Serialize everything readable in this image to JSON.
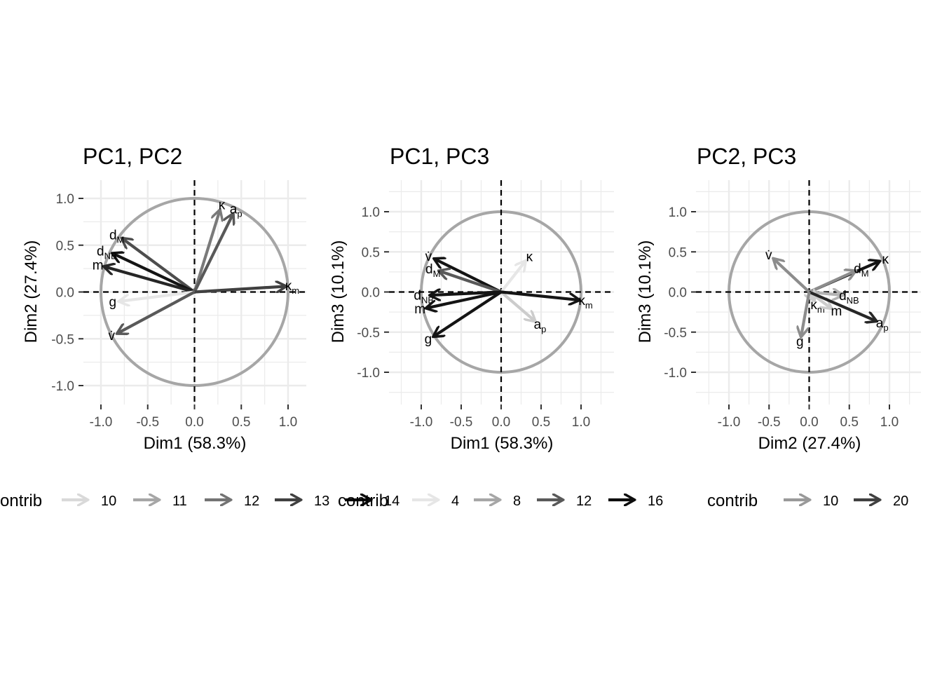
{
  "chart_data": [
    {
      "type": "scatter",
      "subtype": "pca-variable-correlation-circle",
      "title": "PC1, PC2",
      "xlabel": "Dim1 (58.3%)",
      "ylabel": "Dim2 (27.4%)",
      "xlim": [
        -1.2,
        1.2
      ],
      "ylim": [
        -1.2,
        1.2
      ],
      "xticks": [
        "-1.0",
        "-0.5",
        "0.0",
        "0.5",
        "1.0"
      ],
      "yticks": [
        "-1.0",
        "-0.5",
        "0.0",
        "0.5",
        "1.0"
      ],
      "grid": true,
      "legend_position": "bottom",
      "legend": {
        "title": "contrib",
        "entries": [
          {
            "label": "10",
            "color": "#d9d9d9"
          },
          {
            "label": "11",
            "color": "#a6a6a6"
          },
          {
            "label": "12",
            "color": "#737373"
          },
          {
            "label": "13",
            "color": "#404040"
          },
          {
            "label": "14",
            "color": "#0d0d0d"
          }
        ]
      },
      "vectors": [
        {
          "label": "κ",
          "x": 0.27,
          "y": 0.87,
          "color": "#7a7a7a"
        },
        {
          "label": "a",
          "sub": "p",
          "x": 0.41,
          "y": 0.83,
          "color": "#595959"
        },
        {
          "label": "d",
          "sub": "M",
          "x": -0.77,
          "y": 0.57,
          "color": "#4d4d4d"
        },
        {
          "label": "d",
          "sub": "NB",
          "x": -0.87,
          "y": 0.41,
          "color": "#141414"
        },
        {
          "label": "m",
          "x": -0.96,
          "y": 0.27,
          "color": "#262626"
        },
        {
          "label": "g",
          "x": -0.8,
          "y": -0.1,
          "color": "#e6e6e6"
        },
        {
          "label": "v̇",
          "x": -0.82,
          "y": -0.44,
          "color": "#595959"
        },
        {
          "label": "κ",
          "sub": "m",
          "x": 0.97,
          "y": 0.06,
          "color": "#404040"
        }
      ]
    },
    {
      "type": "scatter",
      "subtype": "pca-variable-correlation-circle",
      "title": "PC1, PC3",
      "xlabel": "Dim1 (58.3%)",
      "ylabel": "Dim3 (10.1%)",
      "xlim": [
        -1.4,
        1.4
      ],
      "ylim": [
        -1.4,
        1.4
      ],
      "xticks": [
        "-1.0",
        "-0.5",
        "0.0",
        "0.5",
        "1.0"
      ],
      "yticks": [
        "-1.0",
        "-0.5",
        "0.0",
        "0.5",
        "1.0"
      ],
      "grid": true,
      "legend_position": "bottom",
      "legend": {
        "title": "contrib",
        "entries": [
          {
            "label": "4",
            "color": "#e6e6e6"
          },
          {
            "label": "8",
            "color": "#a6a6a6"
          },
          {
            "label": "12",
            "color": "#595959"
          },
          {
            "label": "16",
            "color": "#0d0d0d"
          }
        ]
      },
      "vectors": [
        {
          "label": "κ",
          "x": 0.3,
          "y": 0.38,
          "color": "#e6e6e6"
        },
        {
          "label": "a",
          "sub": "p",
          "x": 0.42,
          "y": -0.36,
          "color": "#cccccc"
        },
        {
          "label": "v̇",
          "x": -0.83,
          "y": 0.41,
          "color": "#141414"
        },
        {
          "label": "d",
          "sub": "M",
          "x": -0.77,
          "y": 0.26,
          "color": "#595959"
        },
        {
          "label": "d",
          "sub": "NB",
          "x": -0.88,
          "y": -0.04,
          "color": "#141414"
        },
        {
          "label": "m",
          "x": -0.93,
          "y": -0.2,
          "color": "#141414"
        },
        {
          "label": "g",
          "x": -0.84,
          "y": -0.55,
          "color": "#141414"
        },
        {
          "label": "κ",
          "sub": "m",
          "x": 0.97,
          "y": -0.1,
          "color": "#141414"
        }
      ]
    },
    {
      "type": "scatter",
      "subtype": "pca-variable-correlation-circle",
      "title": "PC2, PC3",
      "xlabel": "Dim2 (27.4%)",
      "ylabel": "Dim3 (10.1%)",
      "xlim": [
        -1.4,
        1.4
      ],
      "ylim": [
        -1.4,
        1.4
      ],
      "xticks": [
        "-1.0",
        "-0.5",
        "0.0",
        "0.5",
        "1.0"
      ],
      "yticks": [
        "-1.0",
        "-0.5",
        "0.0",
        "0.5",
        "1.0"
      ],
      "grid": true,
      "legend_position": "bottom",
      "legend": {
        "title": "contrib",
        "entries": [
          {
            "label": "10",
            "color": "#999999"
          },
          {
            "label": "20",
            "color": "#404040"
          }
        ]
      },
      "vectors": [
        {
          "label": "κ",
          "x": 0.87,
          "y": 0.38,
          "color": "#141414"
        },
        {
          "label": "d",
          "sub": "M",
          "x": 0.57,
          "y": 0.26,
          "color": "#8c8c8c"
        },
        {
          "label": "v̇",
          "x": -0.44,
          "y": 0.41,
          "color": "#8c8c8c"
        },
        {
          "label": "d",
          "sub": "NB",
          "x": 0.41,
          "y": -0.04,
          "color": "#b3b3b3"
        },
        {
          "label": "κ",
          "sub": "m",
          "x": 0.06,
          "y": -0.1,
          "color": "#cccccc"
        },
        {
          "label": "m",
          "x": 0.27,
          "y": -0.2,
          "color": "#cccccc"
        },
        {
          "label": "a",
          "sub": "p",
          "x": 0.83,
          "y": -0.36,
          "color": "#262626"
        },
        {
          "label": "g",
          "x": -0.1,
          "y": -0.55,
          "color": "#8c8c8c"
        }
      ]
    }
  ]
}
